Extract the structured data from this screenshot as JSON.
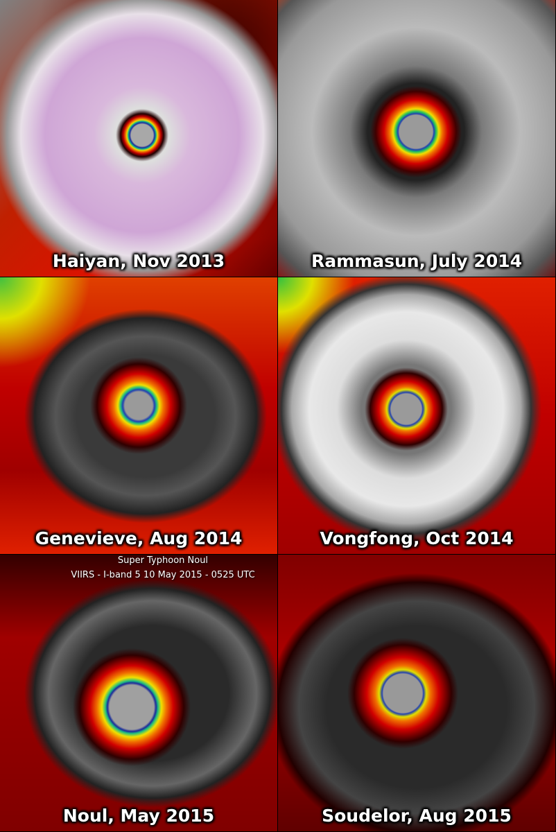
{
  "panels": [
    {
      "caption": "Haiyan, Nov 2013"
    },
    {
      "caption": "Rammasun, July 2014"
    },
    {
      "caption": "Genevieve, Aug 2014"
    },
    {
      "caption": "Vongfong, Oct 2014"
    },
    {
      "caption": "Noul, May 2015",
      "title": "Super Typhoon Noul",
      "subtitle": "VIIRS - I-band 5  10 May 2015 - 0525 UTC"
    },
    {
      "caption": "Soudelor, Aug 2015"
    }
  ]
}
